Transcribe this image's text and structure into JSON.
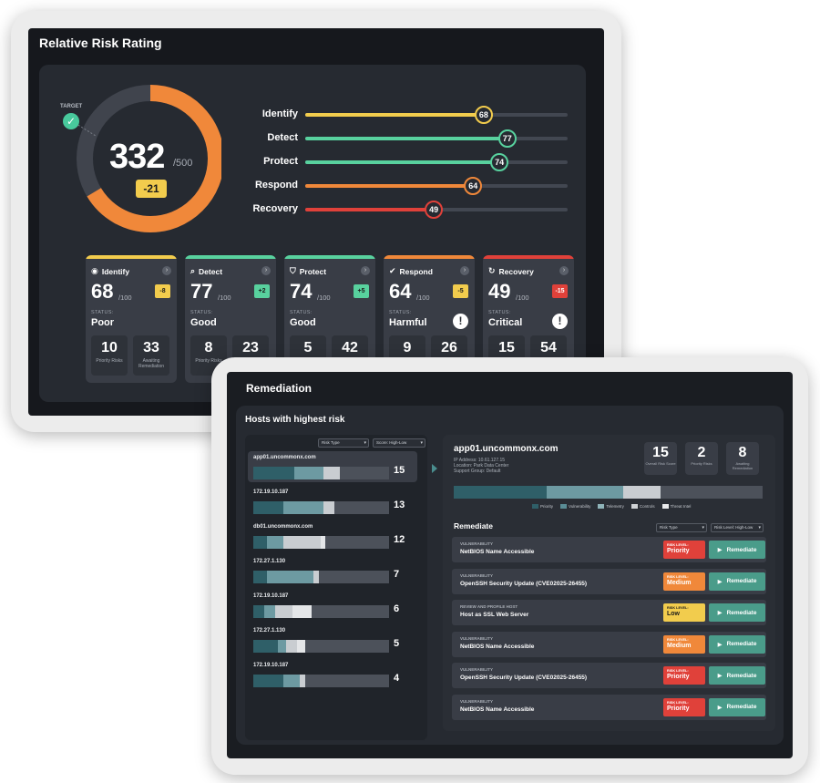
{
  "risk_window": {
    "title": "Relative Risk Rating",
    "target_label": "TARGET",
    "overall": {
      "score": "332",
      "max": "/500",
      "delta": "-21",
      "fraction": 0.664
    },
    "bars": [
      {
        "label": "Identify",
        "value": 68,
        "color": "#f2cc4d"
      },
      {
        "label": "Detect",
        "value": 77,
        "color": "#58d19e"
      },
      {
        "label": "Protect",
        "value": 74,
        "color": "#58d19e"
      },
      {
        "label": "Respond",
        "value": 64,
        "color": "#f0883a"
      },
      {
        "label": "Recovery",
        "value": 49,
        "color": "#e0413a"
      }
    ],
    "cards": [
      {
        "name": "Identify",
        "icon": "eye-icon",
        "glyph": "◉",
        "color": "#f2cc4d",
        "score": "68",
        "max": "/100",
        "delta": "-8",
        "delta_color": "#f2cc4d",
        "delta_text": "#1b1b1b",
        "status_label": "STATUS:",
        "status": "Poor",
        "warn": "",
        "priority": "10",
        "priority_label": "Priority Risks",
        "awaiting": "33",
        "awaiting_label": "Awaiting Remediation"
      },
      {
        "name": "Detect",
        "icon": "search-icon",
        "glyph": "⌕",
        "color": "#58d19e",
        "score": "77",
        "max": "/100",
        "delta": "+2",
        "delta_color": "#58d19e",
        "delta_text": "#1b1b1b",
        "status_label": "STATUS:",
        "status": "Good",
        "warn": "",
        "priority": "8",
        "priority_label": "Priority Risks",
        "awaiting": "23",
        "awaiting_label": "Awaiting Remediation"
      },
      {
        "name": "Protect",
        "icon": "shield-icon",
        "glyph": "⛉",
        "color": "#58d19e",
        "score": "74",
        "max": "/100",
        "delta": "+5",
        "delta_color": "#58d19e",
        "delta_text": "#1b1b1b",
        "status_label": "STATUS:",
        "status": "Good",
        "warn": "",
        "priority": "5",
        "priority_label": "",
        "awaiting": "42",
        "awaiting_label": ""
      },
      {
        "name": "Respond",
        "icon": "check-circle-icon",
        "glyph": "✔",
        "color": "#f0883a",
        "score": "64",
        "max": "/100",
        "delta": "-5",
        "delta_color": "#f2cc4d",
        "delta_text": "#1b1b1b",
        "status_label": "STATUS:",
        "status": "Harmful",
        "warn": "!",
        "priority": "9",
        "priority_label": "",
        "awaiting": "26",
        "awaiting_label": ""
      },
      {
        "name": "Recovery",
        "icon": "refresh-icon",
        "glyph": "↻",
        "color": "#e0413a",
        "score": "49",
        "max": "/100",
        "delta": "-15",
        "delta_color": "#e0413a",
        "delta_text": "#ffffff",
        "status_label": "STATUS:",
        "status": "Critical",
        "warn": "!",
        "priority": "15",
        "priority_label": "",
        "awaiting": "54",
        "awaiting_label": ""
      }
    ]
  },
  "remediation_window": {
    "title": "Remediation",
    "hosts_title": "Hosts with highest risk",
    "filters": {
      "risk_type": "Risk Type",
      "sort": "Score: High-Low"
    },
    "hosts": [
      {
        "name": "app01.uncommonx.com",
        "score": "15",
        "segments": [
          0.3,
          0.22,
          0.12
        ]
      },
      {
        "name": "172.19.10.187",
        "score": "13",
        "segments": [
          0.22,
          0.3,
          0.08
        ]
      },
      {
        "name": "db01.uncommonx.com",
        "score": "12",
        "segments": [
          0.1,
          0.12,
          0.28,
          0.03
        ]
      },
      {
        "name": "172.27.1.130",
        "score": "7",
        "segments": [
          0.1,
          0.34,
          0.04
        ]
      },
      {
        "name": "172.19.10.187",
        "score": "6",
        "segments": [
          0.08,
          0.08,
          0.13,
          0.14
        ]
      },
      {
        "name": "172.27.1.130",
        "score": "5",
        "segments": [
          0.18,
          0.06,
          0.08,
          0.06
        ]
      },
      {
        "name": "172.19.10.187",
        "score": "4",
        "segments": [
          0.22,
          0.12,
          0.04
        ]
      }
    ],
    "selected_host": {
      "name": "app01.uncommonx.com",
      "ip": "IP Address: 10.61.127.15",
      "location": "Location: Park Data Center",
      "group": "Support Group: Default",
      "stats": [
        {
          "value": "15",
          "label": "Overall Risk Score"
        },
        {
          "value": "2",
          "label": "Priority Risks"
        },
        {
          "value": "8",
          "label": "Awaiting Remediation"
        }
      ],
      "segments": [
        0.3,
        0.25,
        0.12
      ],
      "legend": [
        "Priority",
        "Vulnerability",
        "Telemetry",
        "Controls",
        "Threat Intel"
      ],
      "legend_colors": [
        "#2f5f68",
        "#5a8d96",
        "#8fb4b9",
        "#cfd2d5",
        "#e9eaec"
      ]
    },
    "segment_colors": [
      "#2f5f68",
      "#6d9aa2",
      "#c9cdd1",
      "#e4e6e8"
    ],
    "remediate_title": "Remediate",
    "rem_filters": {
      "risk_type": "Risk Type",
      "sort": "Risk Level: High-Low"
    },
    "risk_level_label": "RISK LEVEL:",
    "remediate_label": "Remediate",
    "items": [
      {
        "type": "VULNERABILITY",
        "name": "NetBIOS Name Accessible",
        "level": "Priority",
        "color": "#e0413a",
        "text": "#ffffff"
      },
      {
        "type": "VULNERABILITY",
        "name": "OpenSSH Security Update (CVE02025-26455)",
        "level": "Medium",
        "color": "#f0883a",
        "text": "#ffffff"
      },
      {
        "type": "REVIEW AND PROFILE HOST",
        "name": "Host as SSL Web Server",
        "level": "Low",
        "color": "#f2cc4d",
        "text": "#1b1b1b"
      },
      {
        "type": "VULNERABILITY",
        "name": "NetBIOS Name Accessible",
        "level": "Medium",
        "color": "#f0883a",
        "text": "#ffffff"
      },
      {
        "type": "VULNERABILITY",
        "name": "OpenSSH Security Update (CVE02025-26455)",
        "level": "Priority",
        "color": "#e0413a",
        "text": "#ffffff"
      },
      {
        "type": "VULNERABILITY",
        "name": "NetBIOS Name Accessible",
        "level": "Priority",
        "color": "#e0413a",
        "text": "#ffffff"
      }
    ]
  }
}
